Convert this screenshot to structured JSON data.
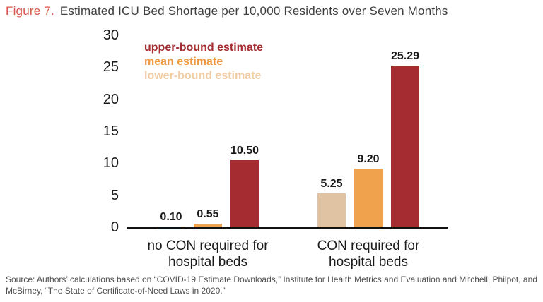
{
  "title": {
    "prefix": "Figure 7.",
    "text": "Estimated ICU Bed Shortage per 10,000 Residents over Seven Months"
  },
  "legend": {
    "items": [
      {
        "label": "upper-bound estimate",
        "color": "#a52c31"
      },
      {
        "label": "mean estimate",
        "color": "#ef9a43"
      },
      {
        "label": "lower-bound estimate",
        "color": "#f0cda4"
      }
    ]
  },
  "chart_data": {
    "type": "bar",
    "title": "Estimated ICU Bed Shortage per 10,000 Residents over Seven Months",
    "categories": [
      "no CON required for hospital beds",
      "CON required for hospital beds"
    ],
    "category_lines": [
      [
        "no CON required for",
        "hospital beds"
      ],
      [
        "CON required for",
        "hospital beds"
      ]
    ],
    "series": [
      {
        "name": "lower-bound estimate",
        "color": "#dfc3a2",
        "values": [
          0.1,
          5.25
        ],
        "labels": [
          "0.10",
          "5.25"
        ]
      },
      {
        "name": "mean estimate",
        "color": "#f0a24c",
        "values": [
          0.55,
          9.2
        ],
        "labels": [
          "0.55",
          "9.20"
        ]
      },
      {
        "name": "upper-bound estimate",
        "color": "#a52c31",
        "values": [
          10.5,
          25.29
        ],
        "labels": [
          "10.50",
          "25.29"
        ]
      }
    ],
    "xlabel": "",
    "ylabel": "",
    "ylim": [
      0,
      30
    ],
    "yticks": [
      0,
      5,
      10,
      15,
      20,
      25,
      30
    ],
    "grid": false,
    "legend_position": "upper-left",
    "value_label_color": "#1a1a1a",
    "axis_color": "#111111"
  },
  "source": {
    "line1": "Source: Authors’ calculations based on “COVID-19 Estimate Downloads,” Institute for Health Metrics and Evaluation and Mitchell, Philpot, and",
    "line2": "McBirney, “The State of Certificate-of-Need Laws in 2020.”"
  }
}
